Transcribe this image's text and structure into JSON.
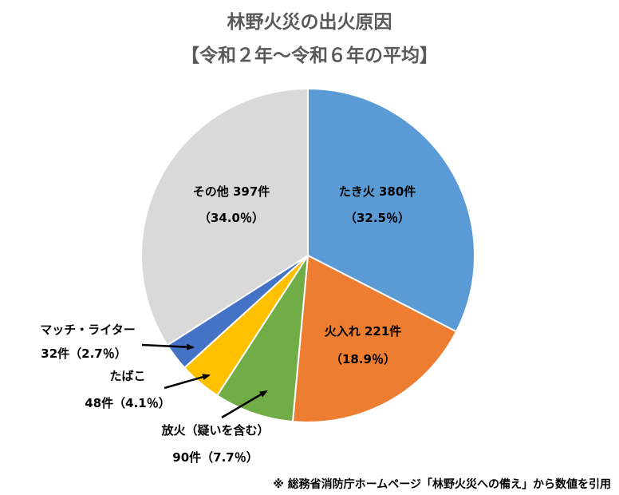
{
  "chart_data": {
    "type": "pie",
    "title": "林野火災の出火原因",
    "subtitle": "【令和２年～令和６年の平均】",
    "slices": [
      {
        "label": "たき火",
        "count": "380件",
        "percent": "（32.5％）",
        "value": 32.5,
        "color": "#5B9BD5"
      },
      {
        "label": "火入れ",
        "count": "221件",
        "percent": "（18.9％）",
        "value": 18.9,
        "color": "#ED7D31"
      },
      {
        "label": "放火（疑いを含む）",
        "count": "90件",
        "percent": "（7.7％）",
        "value": 7.7,
        "color": "#70AD47"
      },
      {
        "label": "たばこ",
        "count": "48件",
        "percent": "（4.1％）",
        "value": 4.1,
        "color": "#FFC000"
      },
      {
        "label": "マッチ・ライター",
        "count": "32件",
        "percent": "（2.7％）",
        "value": 2.7,
        "color": "#4472C4"
      },
      {
        "label": "その他",
        "count": "397件",
        "percent": "（34.0％）",
        "value": 34.0,
        "color": "#D9D9D9"
      }
    ]
  },
  "source_note": "※ 総務省消防庁ホームページ「林野火災への備え」から数値を引用"
}
